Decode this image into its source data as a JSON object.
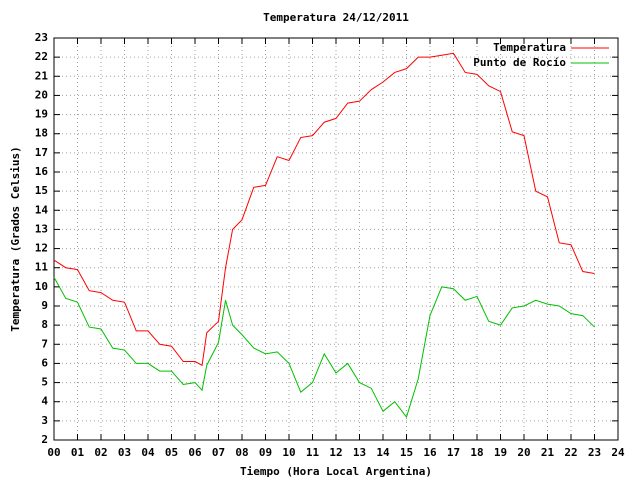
{
  "chart_data": {
    "type": "line",
    "title": "Temperatura 24/12/2011",
    "x_label": "Tiempo (Hora Local Argentina)",
    "y_label": "Temperatura (Grados Celsius)",
    "x": [
      0,
      0.5,
      1,
      1.5,
      2,
      2.5,
      3,
      3.5,
      4,
      4.5,
      5,
      5.5,
      6,
      6.3,
      6.5,
      7,
      7.3,
      7.6,
      8,
      8.5,
      9,
      9.5,
      10,
      10.5,
      11,
      11.5,
      12,
      12.5,
      13,
      13.5,
      14,
      14.5,
      15,
      15.5,
      16,
      16.5,
      17,
      17.5,
      18,
      18.5,
      19,
      19.5,
      20,
      20.5,
      21,
      21.5,
      22,
      22.5,
      23
    ],
    "series": [
      {
        "name": "Temperatura",
        "color": "#ff0000",
        "values": [
          11.4,
          11.0,
          10.9,
          9.8,
          9.7,
          9.3,
          9.2,
          7.7,
          7.7,
          7.0,
          6.9,
          6.1,
          6.1,
          5.9,
          7.6,
          8.2,
          11.0,
          13.0,
          13.5,
          15.2,
          15.3,
          16.8,
          16.6,
          17.8,
          17.9,
          18.6,
          18.8,
          19.6,
          19.7,
          20.3,
          20.7,
          21.2,
          21.4,
          22.0,
          22.0,
          22.1,
          22.2,
          21.2,
          21.1,
          20.5,
          20.2,
          18.1,
          17.9,
          15.0,
          14.7,
          12.3,
          12.2,
          10.8,
          10.7
        ]
      },
      {
        "name": "Punto de Rocío",
        "color": "#00c000",
        "values": [
          10.5,
          9.4,
          9.2,
          7.9,
          7.8,
          6.8,
          6.7,
          6.0,
          6.0,
          5.6,
          5.6,
          4.9,
          5.0,
          4.6,
          5.9,
          7.1,
          9.3,
          8.0,
          7.5,
          6.8,
          6.5,
          6.6,
          6.0,
          4.5,
          5.0,
          6.5,
          5.5,
          6.0,
          5.0,
          4.7,
          3.5,
          4.0,
          3.2,
          5.2,
          8.5,
          10.0,
          9.9,
          9.3,
          9.5,
          8.2,
          8.0,
          8.9,
          9.0,
          9.3,
          9.1,
          9.0,
          8.6,
          8.5,
          7.9
        ]
      }
    ],
    "xlim": [
      0,
      24
    ],
    "xticks": [
      {
        "value": 0,
        "label": "00"
      },
      {
        "value": 1,
        "label": "01"
      },
      {
        "value": 2,
        "label": "02"
      },
      {
        "value": 3,
        "label": "03"
      },
      {
        "value": 4,
        "label": "04"
      },
      {
        "value": 5,
        "label": "05"
      },
      {
        "value": 6,
        "label": "06"
      },
      {
        "value": 7,
        "label": "07"
      },
      {
        "value": 8,
        "label": "08"
      },
      {
        "value": 9,
        "label": "09"
      },
      10,
      11,
      12,
      13,
      14,
      15,
      16,
      17,
      18,
      19,
      20,
      21,
      22,
      23,
      24
    ],
    "ylim": [
      2,
      23
    ],
    "yticks": [
      2,
      3,
      4,
      5,
      6,
      7,
      8,
      9,
      10,
      11,
      12,
      13,
      14,
      15,
      16,
      17,
      18,
      19,
      20,
      21,
      22,
      23
    ],
    "grid": true,
    "legend": "top-right"
  }
}
